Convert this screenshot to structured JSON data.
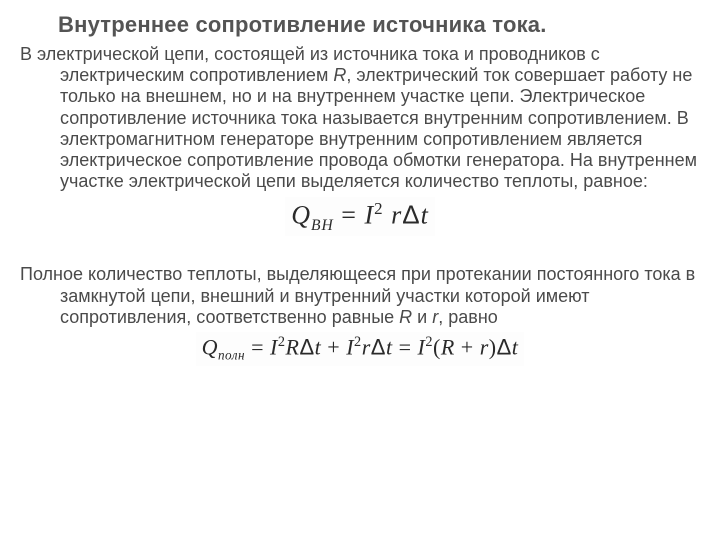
{
  "title": "Внутреннее сопротивление источника тока.",
  "paragraph1_lead": "В электрической цепи, состоящей из источника тока и проводников с электрическим сопротивлением ",
  "R": "R",
  "paragraph1_tail": ", электрический ток совершает работу не только на внешнем, но и на внутреннем участке цепи. Электрическое сопротивление источника тока называется внутренним сопротивлением. В электромагнитном генераторе внутренним сопротивлением является электрическое сопротивление провода обмотки генератора. На внутреннем участке электрической цепи выделяется количество теплоты, равное:",
  "formula1": {
    "Q": "Q",
    "sub": "ВН",
    "eq": " = ",
    "I": "I",
    "sup2": "2",
    "r": " r",
    "delta": "Δ",
    "t": "t"
  },
  "paragraph2_lead": "Полное количество теплоты, выделяющееся при протекании постоянного тока в замкнутой цепи, внешний и внутренний участки которой имеют сопротивления, соответственно равные ",
  "R2": "R",
  "and": " и ",
  "r2": "r",
  "paragraph2_tail": ", равно",
  "formula2": {
    "Q": "Q",
    "sub": "полн",
    "eq1": " = ",
    "I1": "I",
    "sup2a": "2",
    "R": "R",
    "d1": "Δ",
    "t1": "t",
    "plus": " + ",
    "I2": "I",
    "sup2b": "2",
    "r": "r",
    "d2": "Δ",
    "t2": "t",
    "eq2": " = ",
    "I3": "I",
    "sup2c": "2",
    "open": "(",
    "R2": "R",
    "plus2": " + ",
    "r2": "r",
    "close": ")",
    "d3": "Δ",
    "t3": "t"
  }
}
